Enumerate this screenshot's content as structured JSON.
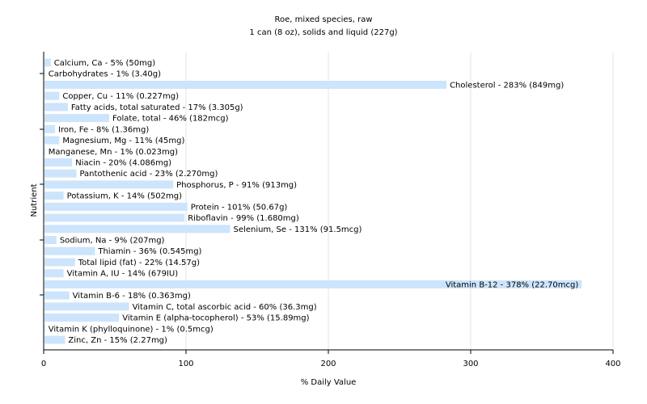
{
  "chart_data": {
    "type": "bar",
    "orientation": "horizontal",
    "title": "Roe, mixed species, raw",
    "subtitle": "1 can (8 oz), solids and liquid (227g)",
    "xlabel": "% Daily Value",
    "ylabel": "Nutrient",
    "xlim": [
      0,
      400
    ],
    "xticks": [
      0,
      100,
      200,
      300,
      400
    ],
    "grid": true,
    "bar_color": "#cce4fc",
    "categories": [
      "Calcium, Ca",
      "Carbohydrates",
      "Cholesterol",
      "Copper, Cu",
      "Fatty acids, total saturated",
      "Folate, total",
      "Iron, Fe",
      "Magnesium, Mg",
      "Manganese, Mn",
      "Niacin",
      "Pantothenic acid",
      "Phosphorus, P",
      "Potassium, K",
      "Protein",
      "Riboflavin",
      "Selenium, Se",
      "Sodium, Na",
      "Thiamin",
      "Total lipid (fat)",
      "Vitamin A, IU",
      "Vitamin B-12",
      "Vitamin B-6",
      "Vitamin C, total ascorbic acid",
      "Vitamin E (alpha-tocopherol)",
      "Vitamin K (phylloquinone)",
      "Zinc, Zn"
    ],
    "values": [
      5,
      1,
      283,
      11,
      17,
      46,
      8,
      11,
      1,
      20,
      23,
      91,
      14,
      101,
      99,
      131,
      9,
      36,
      22,
      14,
      378,
      18,
      60,
      53,
      1,
      15
    ],
    "labels": [
      "Calcium, Ca - 5% (50mg)",
      "Carbohydrates - 1% (3.40g)",
      "Cholesterol - 283% (849mg)",
      "Copper, Cu - 11% (0.227mg)",
      "Fatty acids, total saturated - 17% (3.305g)",
      "Folate, total - 46% (182mcg)",
      "Iron, Fe - 8% (1.36mg)",
      "Magnesium, Mg - 11% (45mg)",
      "Manganese, Mn - 1% (0.023mg)",
      "Niacin - 20% (4.086mg)",
      "Pantothenic acid - 23% (2.270mg)",
      "Phosphorus, P - 91% (913mg)",
      "Potassium, K - 14% (502mg)",
      "Protein - 101% (50.67g)",
      "Riboflavin - 99% (1.680mg)",
      "Selenium, Se - 131% (91.5mcg)",
      "Sodium, Na - 9% (207mg)",
      "Thiamin - 36% (0.545mg)",
      "Total lipid (fat) - 22% (14.57g)",
      "Vitamin A, IU - 14% (679IU)",
      "Vitamin B-12 - 378% (22.70mcg)",
      "Vitamin B-6 - 18% (0.363mg)",
      "Vitamin C, total ascorbic acid - 60% (36.3mg)",
      "Vitamin E (alpha-tocopherol) - 53% (15.89mg)",
      "Vitamin K (phylloquinone) - 1% (0.5mcg)",
      "Zinc, Zn - 15% (2.27mg)"
    ]
  }
}
